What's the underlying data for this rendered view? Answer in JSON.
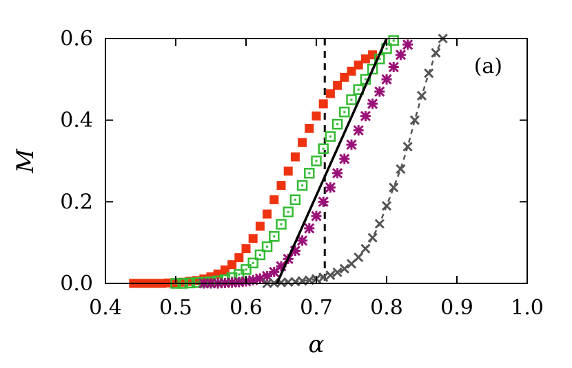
{
  "chart_data": {
    "type": "scatter",
    "panel_label": "(a)",
    "xlabel": "α",
    "ylabel": "M",
    "xlim": [
      0.4,
      1.0
    ],
    "ylim": [
      0.0,
      0.6
    ],
    "xticks": [
      "0.4",
      "0.5",
      "0.6",
      "0.7",
      "0.8",
      "0.9",
      "1.0"
    ],
    "yticks": [
      "0.0",
      "0.2",
      "0.4",
      "0.6"
    ],
    "grid": false,
    "colors": {
      "red": "#ee3311",
      "green": "#33bb33",
      "purple": "#991177",
      "gray": "#555555",
      "black": "#000000"
    },
    "vertical_line_x": 0.712,
    "series": [
      {
        "marker": "filled-square",
        "color": "#ee3311",
        "x": [
          0.44,
          0.45,
          0.46,
          0.47,
          0.48,
          0.49,
          0.5,
          0.51,
          0.52,
          0.53,
          0.54,
          0.55,
          0.56,
          0.57,
          0.58,
          0.59,
          0.6,
          0.61,
          0.62,
          0.63,
          0.64,
          0.65,
          0.66,
          0.67,
          0.68,
          0.69,
          0.7,
          0.71,
          0.72,
          0.73,
          0.74,
          0.75,
          0.76,
          0.77,
          0.78
        ],
        "y": [
          0.0,
          0.0,
          0.0,
          0.0,
          0.0,
          0.001,
          0.002,
          0.003,
          0.005,
          0.007,
          0.011,
          0.016,
          0.023,
          0.033,
          0.046,
          0.063,
          0.085,
          0.11,
          0.14,
          0.17,
          0.205,
          0.24,
          0.275,
          0.31,
          0.345,
          0.38,
          0.41,
          0.44,
          0.465,
          0.485,
          0.505,
          0.52,
          0.535,
          0.55,
          0.56
        ]
      },
      {
        "marker": "open-square",
        "color": "#33bb33",
        "x": [
          0.5,
          0.51,
          0.52,
          0.53,
          0.54,
          0.55,
          0.56,
          0.57,
          0.58,
          0.59,
          0.6,
          0.61,
          0.62,
          0.63,
          0.64,
          0.65,
          0.66,
          0.67,
          0.68,
          0.69,
          0.7,
          0.71,
          0.72,
          0.73,
          0.74,
          0.75,
          0.76,
          0.77,
          0.78,
          0.79,
          0.8,
          0.81
        ],
        "y": [
          0.0,
          0.0,
          0.001,
          0.002,
          0.003,
          0.004,
          0.006,
          0.009,
          0.014,
          0.022,
          0.034,
          0.05,
          0.07,
          0.09,
          0.115,
          0.145,
          0.175,
          0.205,
          0.24,
          0.27,
          0.3,
          0.33,
          0.36,
          0.39,
          0.42,
          0.45,
          0.475,
          0.5,
          0.525,
          0.55,
          0.575,
          0.595
        ]
      },
      {
        "marker": "star",
        "color": "#991177",
        "x": [
          0.54,
          0.55,
          0.56,
          0.57,
          0.58,
          0.59,
          0.6,
          0.61,
          0.62,
          0.63,
          0.64,
          0.65,
          0.66,
          0.67,
          0.68,
          0.69,
          0.7,
          0.71,
          0.72,
          0.73,
          0.74,
          0.75,
          0.76,
          0.77,
          0.78,
          0.79,
          0.8,
          0.81,
          0.82,
          0.83
        ],
        "y": [
          0.0,
          0.0,
          0.0,
          0.001,
          0.002,
          0.003,
          0.005,
          0.008,
          0.012,
          0.018,
          0.028,
          0.042,
          0.06,
          0.08,
          0.105,
          0.135,
          0.165,
          0.2,
          0.235,
          0.27,
          0.305,
          0.34,
          0.375,
          0.41,
          0.44,
          0.47,
          0.5,
          0.53,
          0.56,
          0.585
        ]
      },
      {
        "marker": "cross",
        "color": "#555555",
        "dashed": true,
        "x": [
          0.63,
          0.64,
          0.65,
          0.66,
          0.67,
          0.68,
          0.69,
          0.7,
          0.71,
          0.72,
          0.73,
          0.74,
          0.75,
          0.76,
          0.77,
          0.78,
          0.79,
          0.8,
          0.81,
          0.82,
          0.83,
          0.84,
          0.85,
          0.86,
          0.87,
          0.88
        ],
        "y": [
          0.0,
          0.001,
          0.002,
          0.003,
          0.004,
          0.006,
          0.008,
          0.011,
          0.015,
          0.02,
          0.027,
          0.036,
          0.048,
          0.064,
          0.085,
          0.112,
          0.146,
          0.19,
          0.235,
          0.28,
          0.335,
          0.4,
          0.46,
          0.515,
          0.565,
          0.6
        ]
      },
      {
        "type": "line",
        "color": "#000000",
        "x": [
          0.644,
          0.8
        ],
        "y": [
          0.0,
          0.6
        ]
      }
    ]
  }
}
